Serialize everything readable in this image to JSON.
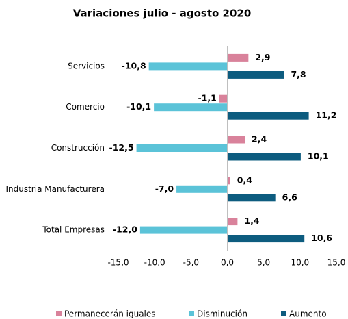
{
  "chart_data": {
    "type": "hbar",
    "title": "Variaciones julio - agosto 2020",
    "categories": [
      "Servicios",
      "Comercio",
      "Construcción",
      "Industria Manufacturera",
      "Total Empresas"
    ],
    "series": [
      {
        "name": "Permanecerán iguales",
        "color": "#d9829b",
        "values": [
          2.9,
          -1.1,
          2.4,
          0.4,
          1.4
        ],
        "value_labels": [
          "2,9",
          "-1,1",
          "2,4",
          "0,4",
          "1,4"
        ]
      },
      {
        "name": "Disminución",
        "color": "#5bc3d8",
        "values": [
          -10.8,
          -10.1,
          -12.5,
          -7.0,
          -12.0
        ],
        "value_labels": [
          "-10,8",
          "-10,1",
          "-12,5",
          "-7,0",
          "-12,0"
        ]
      },
      {
        "name": "Aumento",
        "color": "#0d5c7f",
        "values": [
          7.8,
          11.2,
          10.1,
          6.6,
          10.6
        ],
        "value_labels": [
          "7,8",
          "11,2",
          "10,1",
          "6,6",
          "10,6"
        ]
      }
    ],
    "xlim": [
      -15,
      15
    ],
    "xticks": [
      {
        "value": -15,
        "label": "-15,0"
      },
      {
        "value": -10,
        "label": "-10,0"
      },
      {
        "value": -5,
        "label": "-5,0"
      },
      {
        "value": 0,
        "label": "0,0"
      },
      {
        "value": 5,
        "label": "5,0"
      },
      {
        "value": 10,
        "label": "10,0"
      },
      {
        "value": 15,
        "label": "15,0"
      }
    ],
    "grid": false,
    "legend": "bottom"
  }
}
